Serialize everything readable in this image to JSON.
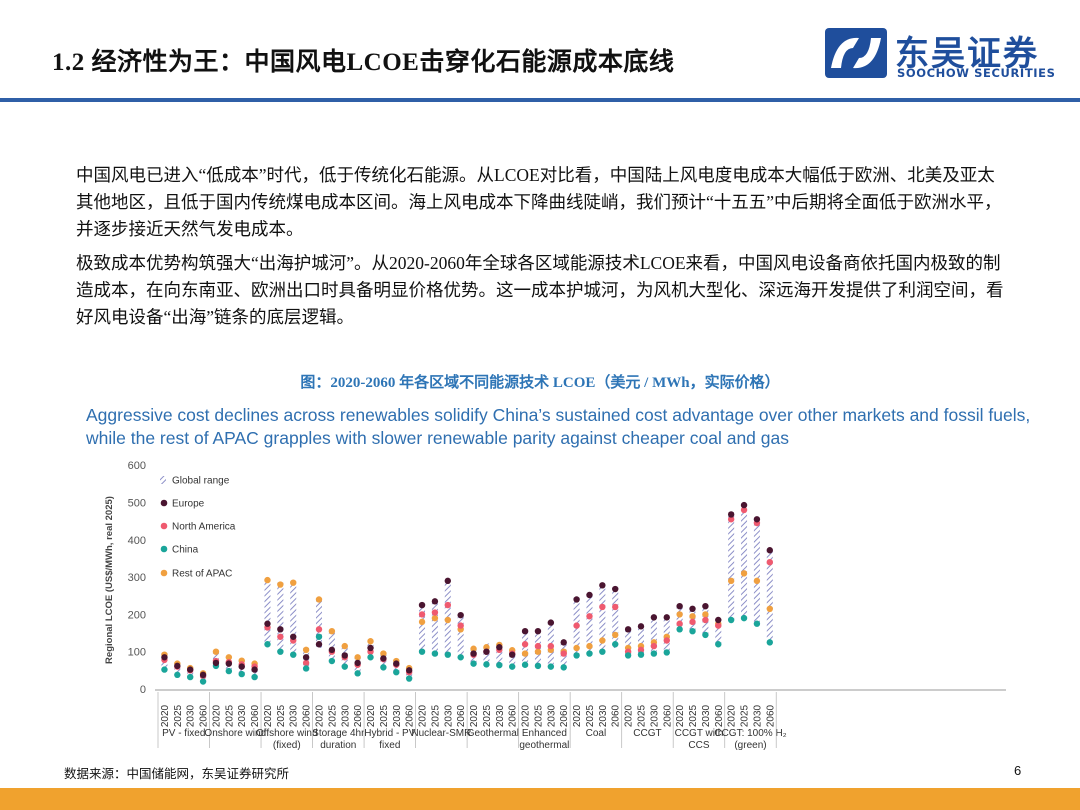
{
  "header": {
    "title": "1.2 经济性为王：中国风电LCOE击穿化石能源成本底线"
  },
  "logo": {
    "cn": "东吴证券",
    "en": "SOOCHOW SECURITIES"
  },
  "body": {
    "paragraph_1": "中国风电已进入“低成本”时代，低于传统化石能源。从LCOE对比看，中国陆上风电度电成本大幅低于欧洲、北美及亚太其他地区，且低于国内传统煤电成本区间。海上风电成本下降曲线陡峭，我们预计“十五五”中后期将全面低于欧洲水平，并逐步接近天然气发电成本。",
    "paragraph_2": "极致成本优势构筑强大“出海护城河”。从2020-2060年全球各区域能源技术LCOE来看，中国风电设备商依托国内极致的制造成本，在向东南亚、欧洲出口时具备明显价格优势。这一成本护城河，为风机大型化、深远海开发提供了利润空间，看好风电设备“出海”链条的底层逻辑。"
  },
  "figure": {
    "caption": "图：2020-2060 年各区域不同能源技术 LCOE（美元 / MWh，实际价格）"
  },
  "footer": {
    "source": "数据来源：中国储能网，东吴证券研究所",
    "page_number": "6"
  },
  "colors": {
    "brand_blue": "#1f4e9c",
    "header_line": "#2f5fa7",
    "caption_blue": "#2e75b6",
    "footer_orange": "#f0a22e",
    "europe": "#4a1530",
    "north_america": "#ef5a6f",
    "china": "#1aa59a",
    "rest_of_apac": "#f0a040",
    "range": "#8c8fc8"
  },
  "chart_data": {
    "type": "scatter",
    "title": "Aggressive cost declines across renewables solidify China’s sustained cost advantage over other markets and fossil fuels, while the rest of APAC grapples with slower renewable parity against cheaper coal and gas",
    "ylabel": "Regional LCOE (US$/MWh, real 2025)",
    "ylim": [
      0,
      600
    ],
    "yticks": [
      0,
      100,
      200,
      300,
      400,
      500,
      600
    ],
    "years": [
      "2020",
      "2025",
      "2030",
      "2060"
    ],
    "legend": [
      "Global range",
      "Europe",
      "North America",
      "China",
      "Rest of APAC"
    ],
    "legend_position": "top-left",
    "grid": false,
    "technologies": [
      {
        "label": "PV - fixed",
        "points": [
          {
            "year": "2020",
            "min": 50,
            "max": 98,
            "europe": 85,
            "north_america": 78,
            "china": 52,
            "rest_of_apac": 92
          },
          {
            "year": "2025",
            "min": 38,
            "max": 72,
            "europe": 62,
            "north_america": 60,
            "china": 38,
            "rest_of_apac": 68
          },
          {
            "year": "2030",
            "min": 32,
            "max": 60,
            "europe": 52,
            "north_america": 50,
            "china": 32,
            "rest_of_apac": 56
          },
          {
            "year": "2060",
            "min": 18,
            "max": 45,
            "europe": 38,
            "north_america": 35,
            "china": 20,
            "rest_of_apac": 42
          }
        ]
      },
      {
        "label": "Onshore wind",
        "points": [
          {
            "year": "2020",
            "min": 55,
            "max": 105,
            "europe": 70,
            "north_america": 75,
            "china": 62,
            "rest_of_apac": 100
          },
          {
            "year": "2025",
            "min": 45,
            "max": 88,
            "europe": 68,
            "north_america": 72,
            "china": 48,
            "rest_of_apac": 85
          },
          {
            "year": "2030",
            "min": 38,
            "max": 80,
            "europe": 60,
            "north_america": 66,
            "china": 40,
            "rest_of_apac": 76
          },
          {
            "year": "2060",
            "min": 30,
            "max": 72,
            "europe": 52,
            "north_america": 60,
            "china": 32,
            "rest_of_apac": 68
          }
        ]
      },
      {
        "label": "Offshore wind (fixed)",
        "points": [
          {
            "year": "2020",
            "min": 115,
            "max": 295,
            "europe": 175,
            "north_america": 165,
            "china": 120,
            "rest_of_apac": 292
          },
          {
            "year": "2025",
            "min": 95,
            "max": 285,
            "europe": 160,
            "north_america": 140,
            "china": 100,
            "rest_of_apac": 280
          },
          {
            "year": "2030",
            "min": 85,
            "max": 288,
            "europe": 140,
            "north_america": 130,
            "china": 92,
            "rest_of_apac": 285
          },
          {
            "year": "2060",
            "min": 50,
            "max": 110,
            "europe": 85,
            "north_america": 70,
            "china": 55,
            "rest_of_apac": 105
          }
        ]
      },
      {
        "label": "Storage 4hr duration",
        "points": [
          {
            "year": "2020",
            "min": 110,
            "max": 245,
            "europe": 120,
            "north_america": 160,
            "china": 140,
            "rest_of_apac": 240
          },
          {
            "year": "2025",
            "min": 70,
            "max": 160,
            "europe": 105,
            "north_america": 100,
            "china": 75,
            "rest_of_apac": 155
          },
          {
            "year": "2030",
            "min": 55,
            "max": 120,
            "europe": 90,
            "north_america": 85,
            "china": 60,
            "rest_of_apac": 115
          },
          {
            "year": "2060",
            "min": 40,
            "max": 88,
            "europe": 70,
            "north_america": 65,
            "china": 42,
            "rest_of_apac": 85
          }
        ]
      },
      {
        "label": "Hybrid - PV fixed",
        "points": [
          {
            "year": "2020",
            "min": 80,
            "max": 132,
            "europe": 110,
            "north_america": 100,
            "china": 85,
            "rest_of_apac": 128
          },
          {
            "year": "2025",
            "min": 55,
            "max": 98,
            "europe": 82,
            "north_america": 80,
            "china": 58,
            "rest_of_apac": 95
          },
          {
            "year": "2030",
            "min": 42,
            "max": 78,
            "europe": 68,
            "north_america": 65,
            "china": 45,
            "rest_of_apac": 75
          },
          {
            "year": "2060",
            "min": 25,
            "max": 60,
            "europe": 50,
            "north_america": 45,
            "china": 28,
            "rest_of_apac": 56
          }
        ]
      },
      {
        "label": "Nuclear-SMR",
        "points": [
          {
            "year": "2020",
            "min": 95,
            "max": 230,
            "europe": 225,
            "north_america": 200,
            "china": 100,
            "rest_of_apac": 180
          },
          {
            "year": "2025",
            "min": 90,
            "max": 240,
            "europe": 235,
            "north_america": 205,
            "china": 95,
            "rest_of_apac": 190
          },
          {
            "year": "2030",
            "min": 85,
            "max": 292,
            "europe": 290,
            "north_america": 225,
            "china": 92,
            "rest_of_apac": 185
          },
          {
            "year": "2060",
            "min": 80,
            "max": 200,
            "europe": 198,
            "north_america": 170,
            "china": 85,
            "rest_of_apac": 160
          }
        ]
      },
      {
        "label": "Geothermal",
        "points": [
          {
            "year": "2020",
            "min": 65,
            "max": 112,
            "europe": 95,
            "north_america": 92,
            "china": 68,
            "rest_of_apac": 108
          },
          {
            "year": "2025",
            "min": 62,
            "max": 122,
            "europe": 100,
            "north_america": 100,
            "china": 66,
            "rest_of_apac": 112
          },
          {
            "year": "2030",
            "min": 60,
            "max": 125,
            "europe": 112,
            "north_america": 105,
            "china": 64,
            "rest_of_apac": 118
          },
          {
            "year": "2060",
            "min": 58,
            "max": 108,
            "europe": 92,
            "north_america": 95,
            "china": 60,
            "rest_of_apac": 104
          }
        ]
      },
      {
        "label": "Enhanced geothermal",
        "points": [
          {
            "year": "2020",
            "min": 60,
            "max": 158,
            "europe": 155,
            "north_america": 120,
            "china": 65,
            "rest_of_apac": 95
          },
          {
            "year": "2025",
            "min": 58,
            "max": 158,
            "europe": 155,
            "north_america": 115,
            "china": 62,
            "rest_of_apac": 100
          },
          {
            "year": "2030",
            "min": 56,
            "max": 180,
            "europe": 178,
            "north_america": 115,
            "china": 60,
            "rest_of_apac": 105
          },
          {
            "year": "2060",
            "min": 55,
            "max": 128,
            "europe": 125,
            "north_america": 95,
            "china": 58,
            "rest_of_apac": 100
          }
        ]
      },
      {
        "label": "Coal",
        "points": [
          {
            "year": "2020",
            "min": 90,
            "max": 245,
            "europe": 240,
            "north_america": 170,
            "china": 90,
            "rest_of_apac": 110
          },
          {
            "year": "2025",
            "min": 92,
            "max": 255,
            "europe": 252,
            "north_america": 195,
            "china": 95,
            "rest_of_apac": 115
          },
          {
            "year": "2030",
            "min": 95,
            "max": 280,
            "europe": 278,
            "north_america": 220,
            "china": 100,
            "rest_of_apac": 130
          },
          {
            "year": "2060",
            "min": 110,
            "max": 272,
            "europe": 268,
            "north_america": 220,
            "china": 120,
            "rest_of_apac": 145
          }
        ]
      },
      {
        "label": "CCGT",
        "points": [
          {
            "year": "2020",
            "min": 85,
            "max": 165,
            "europe": 160,
            "north_america": 100,
            "china": 90,
            "rest_of_apac": 110
          },
          {
            "year": "2025",
            "min": 90,
            "max": 170,
            "europe": 168,
            "north_america": 105,
            "china": 92,
            "rest_of_apac": 115
          },
          {
            "year": "2030",
            "min": 90,
            "max": 195,
            "europe": 192,
            "north_america": 115,
            "china": 95,
            "rest_of_apac": 125
          },
          {
            "year": "2060",
            "min": 95,
            "max": 195,
            "europe": 192,
            "north_america": 130,
            "china": 98,
            "rest_of_apac": 140
          }
        ]
      },
      {
        "label": "CCGT with CCS",
        "points": [
          {
            "year": "2020",
            "min": 160,
            "max": 225,
            "europe": 222,
            "north_america": 175,
            "china": 160,
            "rest_of_apac": 200
          },
          {
            "year": "2025",
            "min": 155,
            "max": 218,
            "europe": 215,
            "north_america": 180,
            "china": 155,
            "rest_of_apac": 195
          },
          {
            "year": "2030",
            "min": 140,
            "max": 225,
            "europe": 222,
            "north_america": 185,
            "china": 145,
            "rest_of_apac": 200
          },
          {
            "year": "2060",
            "min": 115,
            "max": 188,
            "europe": 185,
            "north_america": 170,
            "china": 120,
            "rest_of_apac": 175
          }
        ]
      },
      {
        "label": "CCGT: 100% H₂ (green)",
        "points": [
          {
            "year": "2020",
            "min": 180,
            "max": 472,
            "europe": 468,
            "north_america": 455,
            "china": 185,
            "rest_of_apac": 290
          },
          {
            "year": "2025",
            "min": 185,
            "max": 497,
            "europe": 493,
            "north_america": 480,
            "china": 190,
            "rest_of_apac": 310
          },
          {
            "year": "2030",
            "min": 170,
            "max": 458,
            "europe": 455,
            "north_america": 445,
            "china": 175,
            "rest_of_apac": 290
          },
          {
            "year": "2060",
            "min": 125,
            "max": 378,
            "europe": 372,
            "north_america": 340,
            "china": 125,
            "rest_of_apac": 215
          }
        ]
      }
    ]
  }
}
